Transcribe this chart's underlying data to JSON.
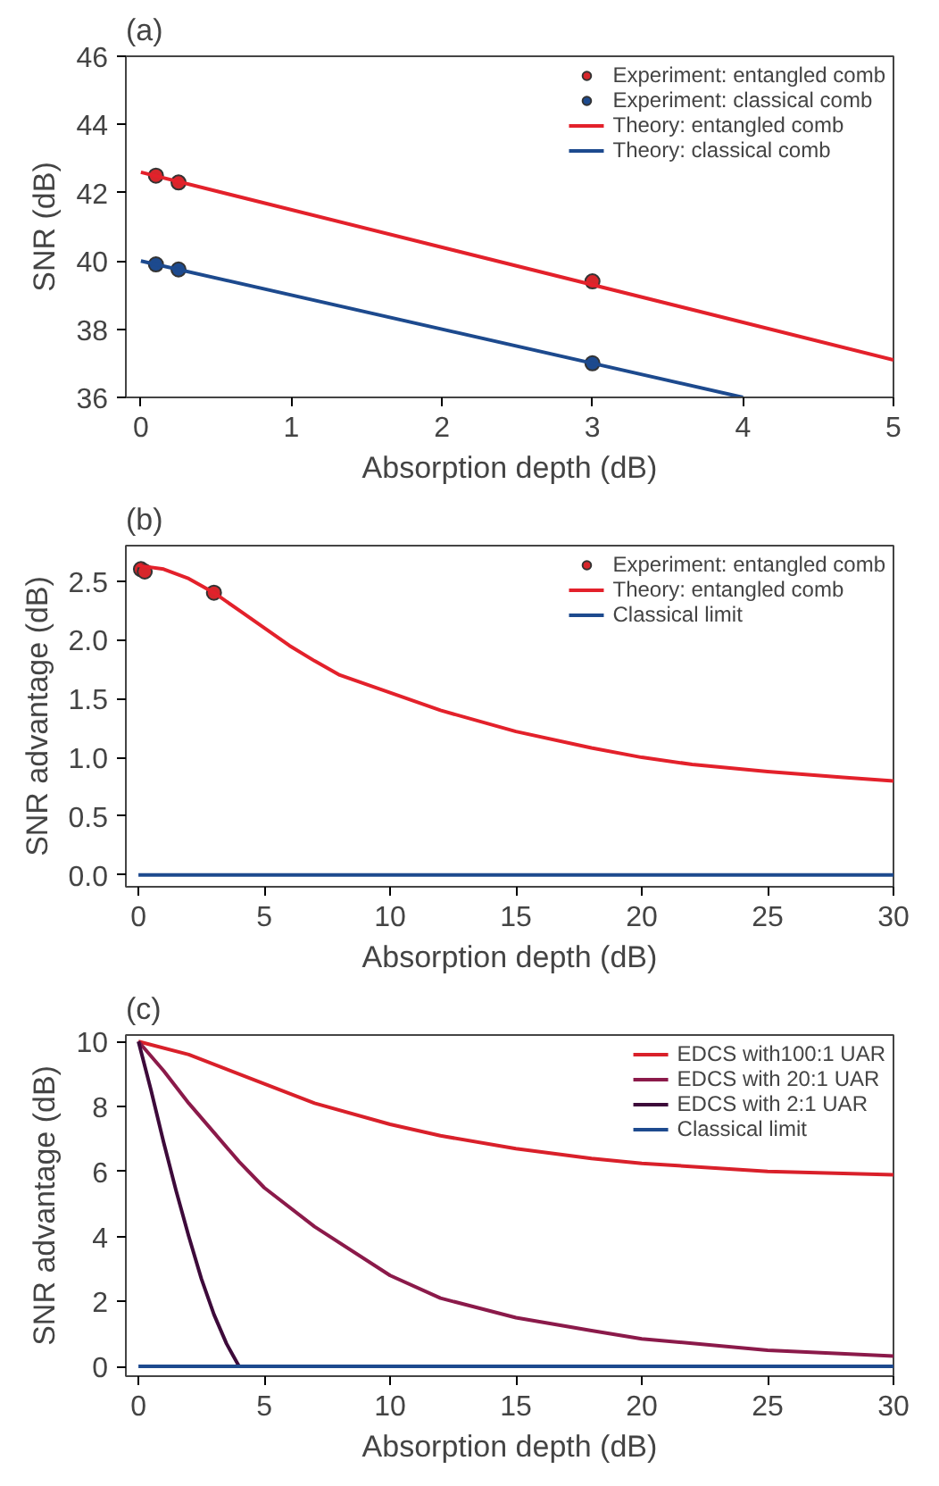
{
  "chart_data": [
    {
      "type": "line",
      "title": "(a)",
      "xlabel": "Absorption depth (dB)",
      "ylabel": "SNR (dB)",
      "xlim": [
        -0.1,
        5
      ],
      "xticks": [
        0,
        1,
        2,
        3,
        4,
        5
      ],
      "ylim": [
        36,
        46
      ],
      "yticks": [
        36,
        38,
        40,
        42,
        44,
        46
      ],
      "grid": false,
      "legend": "top right",
      "series": [
        {
          "name": "Experiment: entangled comb",
          "type": "scatter",
          "marker": "circle",
          "color": "#d7262b",
          "x": [
            0.1,
            0.25,
            3
          ],
          "values": [
            42.5,
            42.3,
            39.4
          ]
        },
        {
          "name": "Experiment: classical comb",
          "type": "scatter",
          "marker": "circle",
          "color": "#1d4a8e",
          "x": [
            0.1,
            0.25,
            3
          ],
          "values": [
            39.9,
            39.75,
            37.0
          ]
        },
        {
          "name": "Theory: entangled comb",
          "color": "#e3212b",
          "x": [
            0,
            5
          ],
          "values": [
            42.6,
            37.1
          ]
        },
        {
          "name": "Theory: classical comb",
          "color": "#1d4a8e",
          "x": [
            0,
            4
          ],
          "values": [
            40.0,
            36.0
          ]
        }
      ]
    },
    {
      "type": "line",
      "title": "(b)",
      "xlabel": "Absorption depth (dB)",
      "ylabel": "SNR advantage (dB)",
      "xlim": [
        -0.5,
        30
      ],
      "xticks": [
        0,
        5,
        10,
        15,
        20,
        25,
        30
      ],
      "ylim": [
        -0.1,
        2.8
      ],
      "yticks": [
        {
          "value": 0,
          "label": "0.0"
        },
        {
          "value": 0.5,
          "label": "0.5"
        },
        {
          "value": 1,
          "label": "1.0"
        },
        {
          "value": 1.5,
          "label": "1.5"
        },
        {
          "value": 2,
          "label": "2.0"
        },
        {
          "value": 2.5,
          "label": "2.5"
        }
      ],
      "grid": false,
      "legend": "top right",
      "series": [
        {
          "name": "Experiment: entangled comb",
          "type": "scatter",
          "marker": "circle",
          "color": "#d7262b",
          "x": [
            0.1,
            0.25,
            3
          ],
          "values": [
            2.6,
            2.58,
            2.4
          ]
        },
        {
          "name": "Theory: entangled comb",
          "color": "#e3212b",
          "x": [
            0,
            1,
            2,
            3,
            4,
            5,
            6,
            7,
            8,
            10,
            12,
            15,
            18,
            20,
            22,
            25,
            28,
            30
          ],
          "values": [
            2.63,
            2.6,
            2.52,
            2.4,
            2.25,
            2.1,
            1.95,
            1.82,
            1.7,
            1.55,
            1.4,
            1.22,
            1.08,
            1.0,
            0.94,
            0.88,
            0.83,
            0.8
          ]
        },
        {
          "name": "Classical limit",
          "color": "#1d4a8e",
          "x": [
            0,
            30
          ],
          "values": [
            0,
            0
          ]
        }
      ]
    },
    {
      "type": "line",
      "title": "(c)",
      "xlabel": "Absorption depth (dB)",
      "ylabel": "SNR advantage (dB)",
      "xlim": [
        -0.5,
        30
      ],
      "xticks": [
        0,
        5,
        10,
        15,
        20,
        25,
        30
      ],
      "ylim": [
        -0.3,
        10.2
      ],
      "yticks": [
        0,
        2,
        4,
        6,
        8,
        10
      ],
      "grid": false,
      "legend": "top right",
      "series": [
        {
          "name": "EDCS with100:1 UAR",
          "color": "#d9202a",
          "x": [
            0,
            2,
            5,
            7,
            10,
            12,
            15,
            18,
            20,
            25,
            30
          ],
          "values": [
            10,
            9.6,
            8.7,
            8.1,
            7.45,
            7.1,
            6.7,
            6.4,
            6.25,
            6.0,
            5.9
          ]
        },
        {
          "name": "EDCS with 20:1 UAR",
          "color": "#8b1a4a",
          "x": [
            0,
            1,
            2,
            3,
            4,
            5,
            7,
            10,
            12,
            15,
            18,
            20,
            25,
            30
          ],
          "values": [
            10,
            9.1,
            8.1,
            7.2,
            6.3,
            5.5,
            4.3,
            2.8,
            2.1,
            1.5,
            1.1,
            0.85,
            0.5,
            0.32
          ]
        },
        {
          "name": "EDCS with 2:1 UAR",
          "color": "#3d0a3a",
          "x": [
            0,
            0.5,
            1,
            1.5,
            2,
            2.5,
            3,
            3.5,
            4
          ],
          "values": [
            10,
            8.5,
            6.9,
            5.4,
            4.0,
            2.7,
            1.6,
            0.7,
            0
          ]
        },
        {
          "name": "Classical limit",
          "color": "#1d4a8e",
          "x": [
            0,
            30
          ],
          "values": [
            0,
            0
          ]
        }
      ]
    }
  ]
}
